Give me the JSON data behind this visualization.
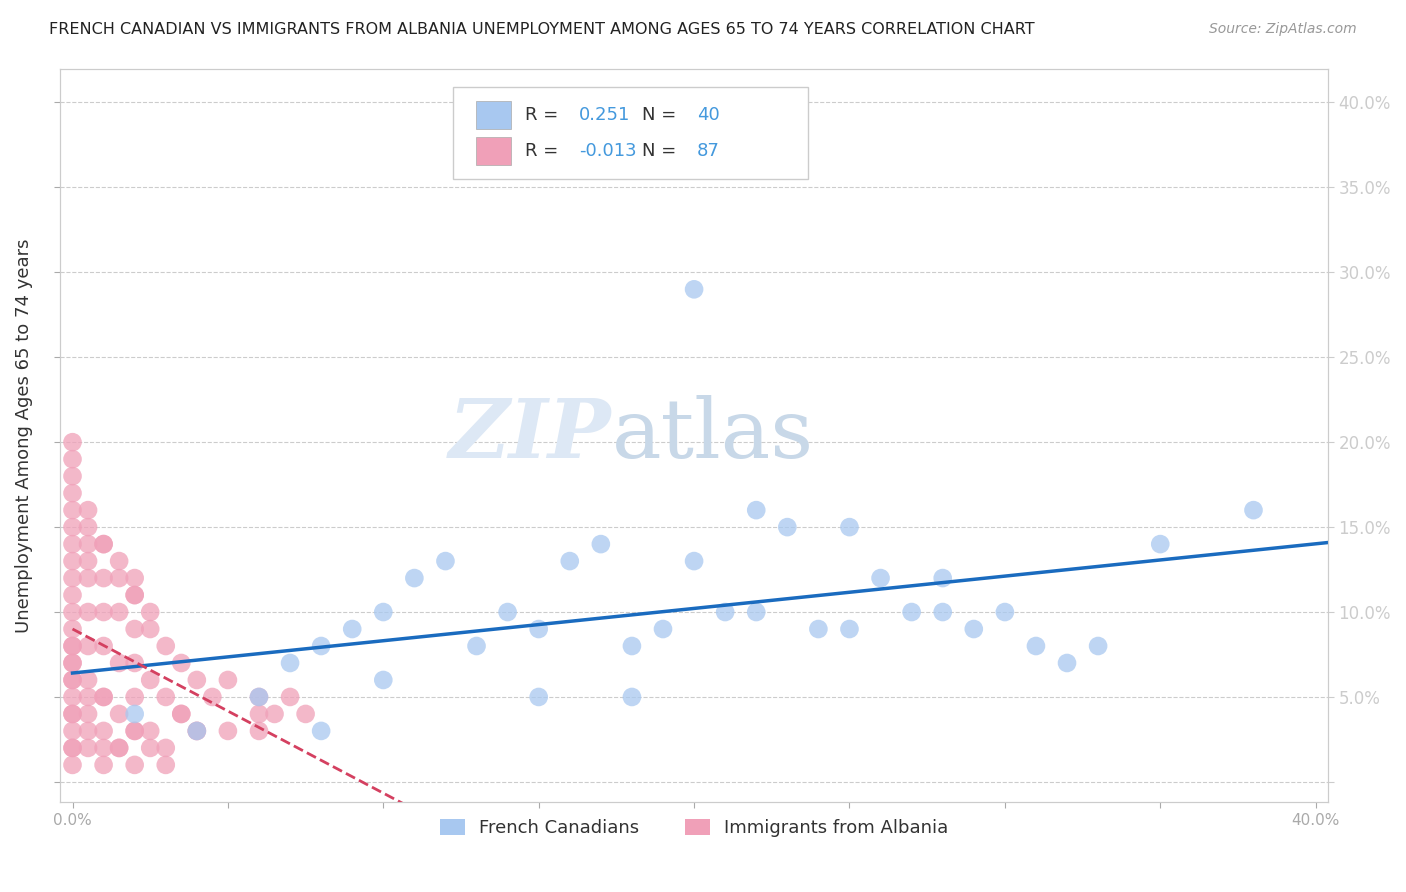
{
  "title": "FRENCH CANADIAN VS IMMIGRANTS FROM ALBANIA UNEMPLOYMENT AMONG AGES 65 TO 74 YEARS CORRELATION CHART",
  "source": "Source: ZipAtlas.com",
  "ylabel": "Unemployment Among Ages 65 to 74 years",
  "background_color": "#ffffff",
  "watermark_zip": "ZIP",
  "watermark_atlas": "atlas",
  "blue_R": 0.251,
  "blue_N": 40,
  "pink_R": -0.013,
  "pink_N": 87,
  "blue_color": "#a8c8f0",
  "pink_color": "#f0a0b8",
  "blue_line_color": "#1a6bbf",
  "pink_line_color": "#d44060",
  "right_axis_color": "#4499dd",
  "legend_label_blue": "French Canadians",
  "legend_label_pink": "Immigrants from Albania",
  "blue_scatter_x": [
    0.02,
    0.04,
    0.06,
    0.07,
    0.08,
    0.09,
    0.1,
    0.11,
    0.12,
    0.13,
    0.14,
    0.15,
    0.16,
    0.17,
    0.18,
    0.19,
    0.2,
    0.21,
    0.22,
    0.24,
    0.25,
    0.26,
    0.27,
    0.28,
    0.29,
    0.3,
    0.31,
    0.32,
    0.33,
    0.35,
    0.22,
    0.23,
    0.18,
    0.15,
    0.1,
    0.08,
    0.25,
    0.28,
    0.38,
    0.2
  ],
  "blue_scatter_y": [
    0.04,
    0.03,
    0.05,
    0.07,
    0.08,
    0.09,
    0.1,
    0.12,
    0.13,
    0.08,
    0.1,
    0.09,
    0.13,
    0.14,
    0.08,
    0.09,
    0.13,
    0.1,
    0.1,
    0.09,
    0.15,
    0.12,
    0.1,
    0.12,
    0.09,
    0.1,
    0.08,
    0.07,
    0.08,
    0.14,
    0.16,
    0.15,
    0.05,
    0.05,
    0.06,
    0.03,
    0.09,
    0.1,
    0.16,
    0.29
  ],
  "pink_scatter_x": [
    0.0,
    0.0,
    0.0,
    0.0,
    0.0,
    0.0,
    0.0,
    0.0,
    0.005,
    0.005,
    0.005,
    0.005,
    0.01,
    0.01,
    0.01,
    0.01,
    0.01,
    0.015,
    0.015,
    0.015,
    0.02,
    0.02,
    0.02,
    0.02,
    0.025,
    0.025,
    0.03,
    0.03,
    0.035,
    0.035,
    0.04,
    0.04,
    0.045,
    0.05,
    0.05,
    0.06,
    0.06,
    0.065,
    0.07,
    0.075,
    0.0,
    0.0,
    0.0,
    0.0,
    0.005,
    0.005,
    0.01,
    0.01,
    0.015,
    0.02,
    0.02,
    0.025,
    0.03,
    0.0,
    0.0,
    0.0,
    0.0,
    0.0,
    0.005,
    0.005,
    0.0,
    0.005,
    0.01,
    0.015,
    0.02,
    0.02,
    0.025,
    0.0,
    0.0,
    0.0,
    0.0,
    0.0,
    0.0,
    0.005,
    0.01,
    0.015,
    0.025,
    0.035,
    0.04,
    0.06,
    0.005,
    0.01,
    0.015,
    0.02,
    0.03,
    0.005,
    0.0
  ],
  "pink_scatter_y": [
    0.14,
    0.12,
    0.1,
    0.09,
    0.08,
    0.07,
    0.06,
    0.05,
    0.14,
    0.12,
    0.1,
    0.08,
    0.14,
    0.12,
    0.1,
    0.08,
    0.05,
    0.12,
    0.1,
    0.07,
    0.11,
    0.09,
    0.07,
    0.05,
    0.09,
    0.06,
    0.08,
    0.05,
    0.07,
    0.04,
    0.06,
    0.03,
    0.05,
    0.06,
    0.03,
    0.05,
    0.03,
    0.04,
    0.05,
    0.04,
    0.04,
    0.03,
    0.02,
    0.01,
    0.04,
    0.02,
    0.03,
    0.01,
    0.02,
    0.03,
    0.01,
    0.02,
    0.01,
    0.15,
    0.13,
    0.11,
    0.16,
    0.18,
    0.15,
    0.13,
    0.17,
    0.16,
    0.14,
    0.13,
    0.12,
    0.11,
    0.1,
    0.2,
    0.19,
    0.08,
    0.06,
    0.04,
    0.02,
    0.03,
    0.02,
    0.02,
    0.03,
    0.04,
    0.03,
    0.04,
    0.06,
    0.05,
    0.04,
    0.03,
    0.02,
    0.05,
    0.07
  ]
}
